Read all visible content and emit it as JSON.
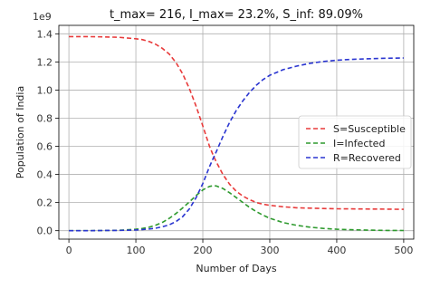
{
  "chart_data": {
    "type": "line",
    "title": "t_max= 216, I_max= 23.2%, S_inf: 89.09%",
    "xlabel": "Number of Days",
    "ylabel": "Population of India",
    "y_offset_text": "1e9",
    "xlim": [
      -15,
      515
    ],
    "ylim": [
      -0.06,
      1.46
    ],
    "xticks": [
      0,
      100,
      200,
      300,
      400,
      500
    ],
    "yticks": [
      0.0,
      0.2,
      0.4,
      0.6,
      0.8,
      1.0,
      1.2,
      1.4
    ],
    "ytick_labels": [
      "0.0",
      "0.2",
      "0.4",
      "0.6",
      "0.8",
      "1.0",
      "1.2",
      "1.4"
    ],
    "grid": true,
    "legend_position": "center-right",
    "x": [
      0,
      25,
      50,
      75,
      100,
      110,
      120,
      130,
      140,
      150,
      160,
      170,
      180,
      190,
      200,
      210,
      216,
      220,
      230,
      240,
      250,
      260,
      270,
      280,
      290,
      300,
      320,
      340,
      360,
      380,
      400,
      420,
      450,
      475,
      500
    ],
    "series": [
      {
        "name": "S=Susceptible",
        "color": "#e83a3a",
        "values": [
          1.38,
          1.38,
          1.378,
          1.375,
          1.365,
          1.358,
          1.345,
          1.325,
          1.295,
          1.255,
          1.195,
          1.115,
          1.01,
          0.885,
          0.745,
          0.6,
          0.53,
          0.49,
          0.4,
          0.33,
          0.28,
          0.245,
          0.22,
          0.2,
          0.188,
          0.18,
          0.17,
          0.163,
          0.16,
          0.158,
          0.156,
          0.155,
          0.154,
          0.153,
          0.152
        ]
      },
      {
        "name": "I=Infected",
        "color": "#2e9a2e",
        "values": [
          0.0,
          0.0,
          0.001,
          0.003,
          0.01,
          0.016,
          0.025,
          0.04,
          0.06,
          0.088,
          0.122,
          0.162,
          0.205,
          0.25,
          0.29,
          0.315,
          0.32,
          0.318,
          0.3,
          0.27,
          0.235,
          0.2,
          0.165,
          0.135,
          0.11,
          0.088,
          0.058,
          0.038,
          0.025,
          0.016,
          0.01,
          0.007,
          0.004,
          0.002,
          0.001
        ]
      },
      {
        "name": "R=Recovered",
        "color": "#2a35d0",
        "values": [
          0.0,
          0.0,
          0.001,
          0.002,
          0.005,
          0.008,
          0.012,
          0.018,
          0.028,
          0.042,
          0.065,
          0.1,
          0.155,
          0.235,
          0.335,
          0.455,
          0.52,
          0.56,
          0.67,
          0.77,
          0.855,
          0.925,
          0.985,
          1.035,
          1.075,
          1.105,
          1.145,
          1.17,
          1.19,
          1.203,
          1.212,
          1.218,
          1.223,
          1.226,
          1.228
        ]
      }
    ]
  }
}
